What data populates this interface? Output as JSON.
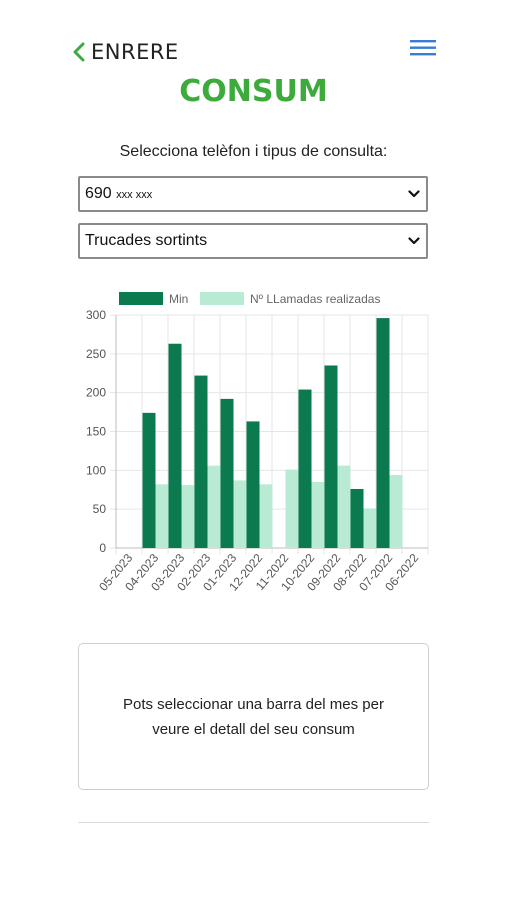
{
  "header": {
    "back_label": "ENRERE",
    "back_icon": "chevron-left-icon",
    "menu_icon": "hamburger-menu-icon"
  },
  "title": "CONSUM",
  "prompt": "Selecciona telèfon i tipus de consulta:",
  "phone_select": {
    "prefix": "690",
    "masked": "xxx xxx"
  },
  "type_select": {
    "value": "Trucades sortints"
  },
  "chart_data": {
    "type": "bar",
    "categories": [
      "05-2023",
      "04-2023",
      "03-2023",
      "02-2023",
      "01-2023",
      "12-2022",
      "11-2022",
      "10-2022",
      "09-2022",
      "08-2022",
      "07-2022",
      "06-2022"
    ],
    "series": [
      {
        "name": "Min",
        "color": "#0b7a4f",
        "values": [
          0,
          174,
          263,
          222,
          192,
          163,
          0,
          204,
          235,
          76,
          296,
          0
        ]
      },
      {
        "name": "Nº LLamadas realizadas",
        "color": "#b8ead4",
        "values": [
          0,
          82,
          81,
          106,
          87,
          82,
          101,
          85,
          106,
          51,
          94,
          0
        ]
      }
    ],
    "ylim": [
      0,
      300
    ],
    "yticks": [
      0,
      50,
      100,
      150,
      200,
      250,
      300
    ],
    "grid": true,
    "legend": "top"
  },
  "info_text": "Pots seleccionar una barra del mes per veure el detall del seu consum",
  "colors": {
    "accent_green": "#3cab3c",
    "menu_blue": "#3a7bd5",
    "bar_dark": "#0b7a4f",
    "bar_light": "#b8ead4"
  }
}
